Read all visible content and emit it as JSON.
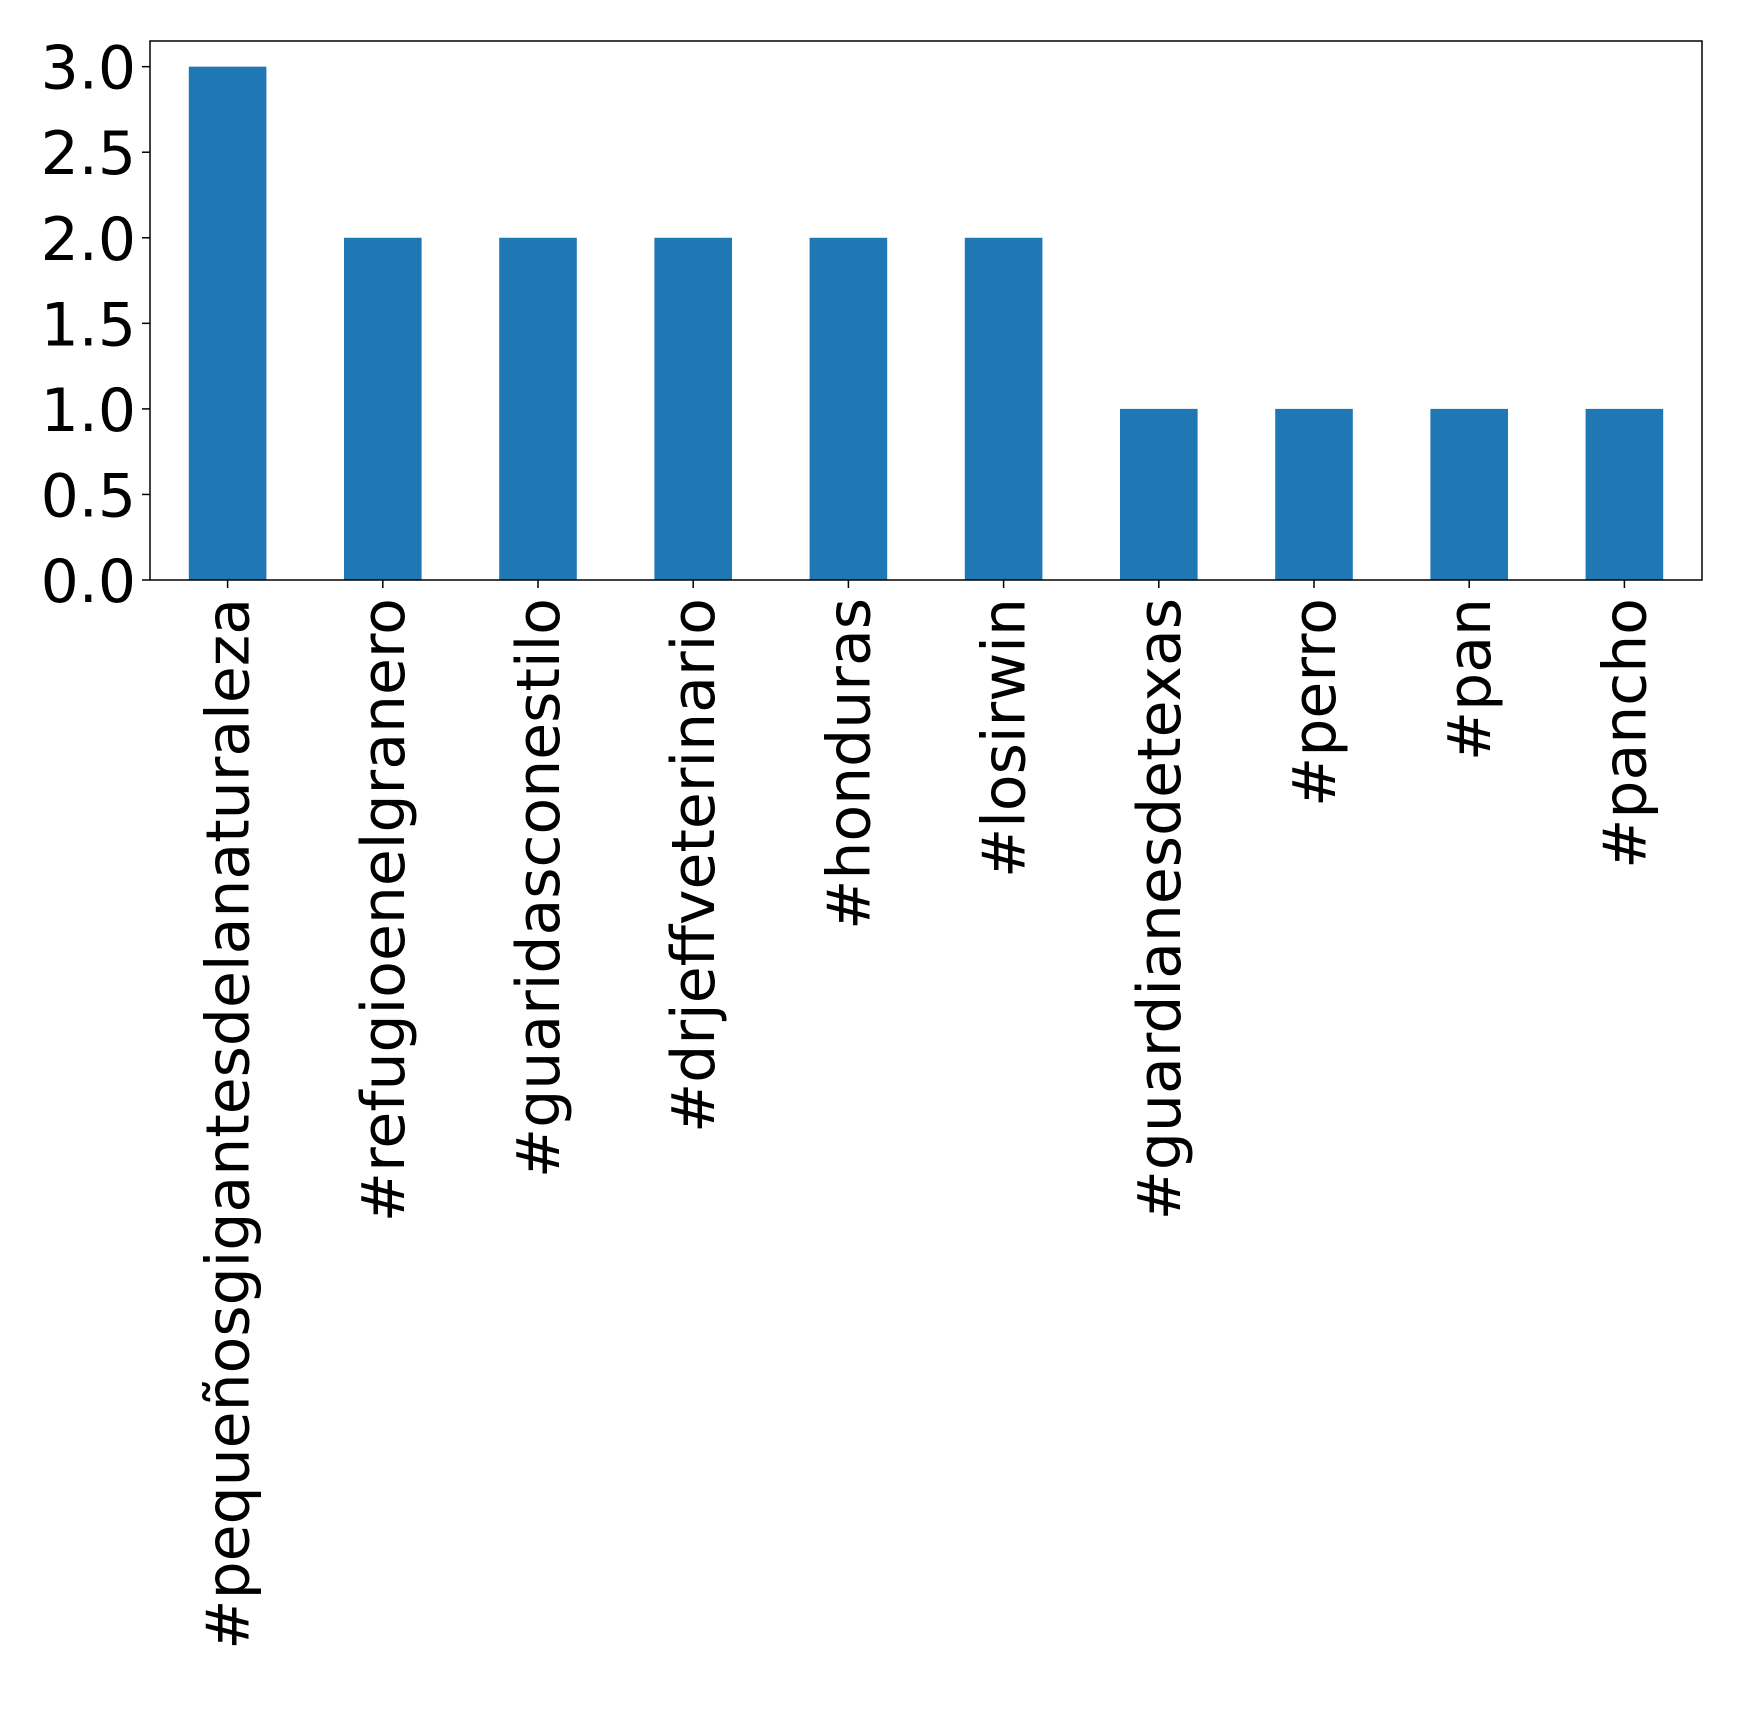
{
  "chart_data": {
    "type": "bar",
    "title": "",
    "xlabel": "",
    "ylabel": "",
    "categories": [
      "#pequeñosgigantesdelanaturaleza",
      "#refugioenelgranero",
      "#guaridasconestilo",
      "#drjeffveterinario",
      "#honduras",
      "#losirwin",
      "#guardianesdetexas",
      "#perro",
      "#pan",
      "#pancho"
    ],
    "values": [
      3,
      2,
      2,
      2,
      2,
      2,
      1,
      1,
      1,
      1
    ],
    "ylim": [
      0,
      3.15
    ],
    "yticks": [
      "0.0",
      "0.5",
      "1.0",
      "1.5",
      "2.0",
      "2.5",
      "3.0"
    ],
    "grid": false,
    "legend": "none",
    "bar_color": "#1f77b4"
  }
}
